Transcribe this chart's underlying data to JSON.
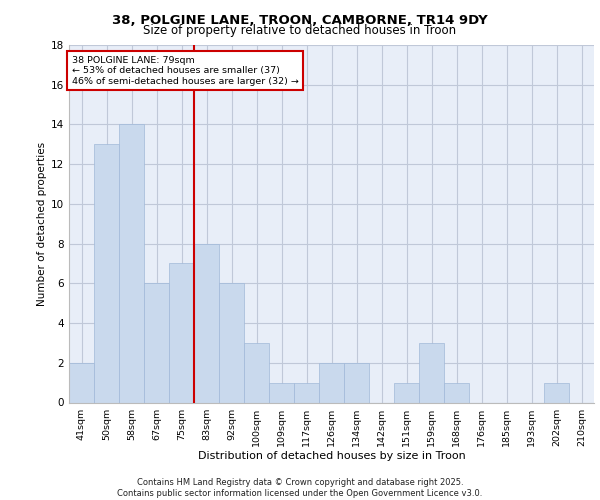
{
  "title1": "38, POLGINE LANE, TROON, CAMBORNE, TR14 9DY",
  "title2": "Size of property relative to detached houses in Troon",
  "xlabel": "Distribution of detached houses by size in Troon",
  "ylabel": "Number of detached properties",
  "categories": [
    "41sqm",
    "50sqm",
    "58sqm",
    "67sqm",
    "75sqm",
    "83sqm",
    "92sqm",
    "100sqm",
    "109sqm",
    "117sqm",
    "126sqm",
    "134sqm",
    "142sqm",
    "151sqm",
    "159sqm",
    "168sqm",
    "176sqm",
    "185sqm",
    "193sqm",
    "202sqm",
    "210sqm"
  ],
  "values": [
    2,
    13,
    14,
    6,
    7,
    8,
    6,
    3,
    1,
    1,
    2,
    2,
    0,
    1,
    3,
    1,
    0,
    0,
    0,
    1,
    0
  ],
  "bar_color": "#c9d9ed",
  "bar_edge_color": "#a0b8d8",
  "vline_x_index": 4.5,
  "vline_color": "#cc0000",
  "annotation_text": "38 POLGINE LANE: 79sqm\n← 53% of detached houses are smaller (37)\n46% of semi-detached houses are larger (32) →",
  "annotation_box_color": "#ffffff",
  "annotation_box_edge": "#cc0000",
  "ylim": [
    0,
    18
  ],
  "yticks": [
    0,
    2,
    4,
    6,
    8,
    10,
    12,
    14,
    16,
    18
  ],
  "grid_color": "#c0c8d8",
  "bg_color": "#e8eef8",
  "footer": "Contains HM Land Registry data © Crown copyright and database right 2025.\nContains public sector information licensed under the Open Government Licence v3.0."
}
